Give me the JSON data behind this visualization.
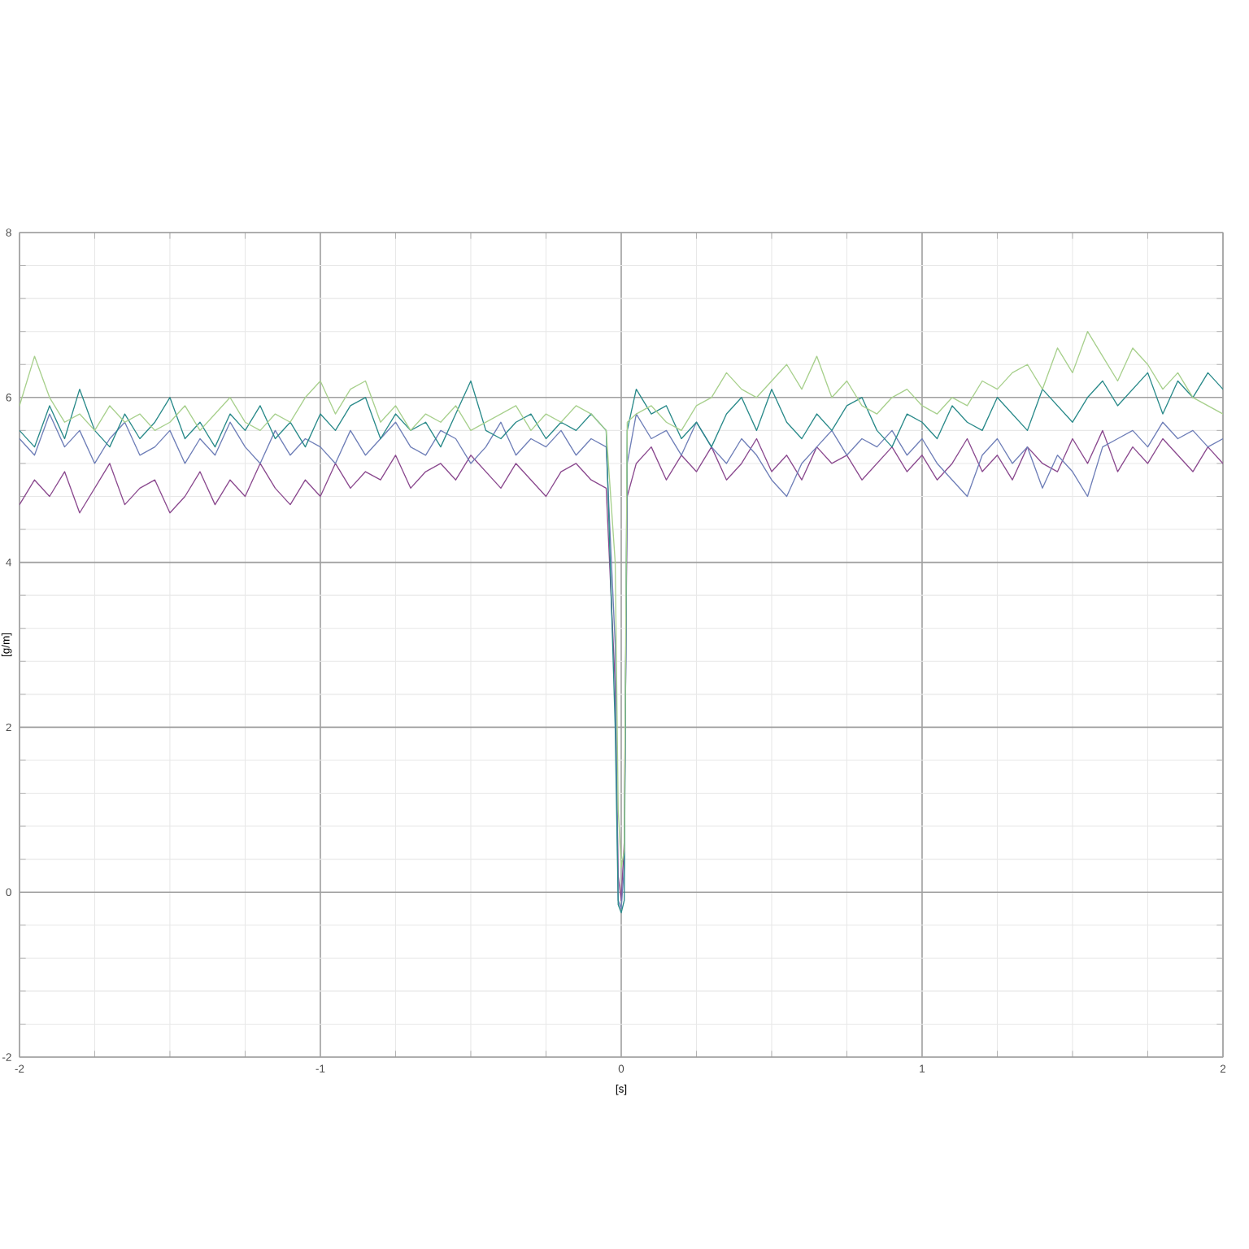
{
  "chart_data": {
    "type": "line",
    "xlabel": "[s]",
    "ylabel": "[g/m]",
    "xlim": [
      -2,
      2
    ],
    "ylim": [
      -2,
      8
    ],
    "xticks": [
      -2,
      -1,
      0,
      1,
      2
    ],
    "yticks": [
      -2,
      0,
      2,
      4,
      6,
      8
    ],
    "grid": true,
    "x": [
      -2,
      -1.95,
      -1.9,
      -1.85,
      -1.8,
      -1.75,
      -1.7,
      -1.65,
      -1.6,
      -1.55,
      -1.5,
      -1.45,
      -1.4,
      -1.35,
      -1.3,
      -1.25,
      -1.2,
      -1.15,
      -1.1,
      -1.05,
      -1,
      -0.95,
      -0.9,
      -0.85,
      -0.8,
      -0.75,
      -0.7,
      -0.65,
      -0.6,
      -0.55,
      -0.5,
      -0.45,
      -0.4,
      -0.35,
      -0.3,
      -0.25,
      -0.2,
      -0.15,
      -0.1,
      -0.05,
      -0.02,
      -0.01,
      0,
      0.01,
      0.02,
      0.05,
      0.1,
      0.15,
      0.2,
      0.25,
      0.3,
      0.35,
      0.4,
      0.45,
      0.5,
      0.55,
      0.6,
      0.65,
      0.7,
      0.75,
      0.8,
      0.85,
      0.9,
      0.95,
      1,
      1.05,
      1.1,
      1.15,
      1.2,
      1.25,
      1.3,
      1.35,
      1.4,
      1.45,
      1.5,
      1.55,
      1.6,
      1.65,
      1.7,
      1.75,
      1.8,
      1.85,
      1.9,
      1.95,
      2
    ],
    "series": [
      {
        "color": "#8b4a8f",
        "values": [
          4.7,
          5.0,
          4.8,
          5.1,
          4.6,
          4.9,
          5.2,
          4.7,
          4.9,
          5.0,
          4.6,
          4.8,
          5.1,
          4.7,
          5.0,
          4.8,
          5.2,
          4.9,
          4.7,
          5.0,
          4.8,
          5.2,
          4.9,
          5.1,
          5.0,
          5.3,
          4.9,
          5.1,
          5.2,
          5.0,
          5.3,
          5.1,
          4.9,
          5.2,
          5.0,
          4.8,
          5.1,
          5.2,
          5.0,
          4.9,
          2.5,
          0.2,
          -0.1,
          0.6,
          4.8,
          5.2,
          5.4,
          5.0,
          5.3,
          5.1,
          5.4,
          5.0,
          5.2,
          5.5,
          5.1,
          5.3,
          5.0,
          5.4,
          5.2,
          5.3,
          5.0,
          5.2,
          5.4,
          5.1,
          5.3,
          5.0,
          5.2,
          5.5,
          5.1,
          5.3,
          5.0,
          5.4,
          5.2,
          5.1,
          5.5,
          5.2,
          5.6,
          5.1,
          5.4,
          5.2,
          5.5,
          5.3,
          5.1,
          5.4,
          5.2
        ]
      },
      {
        "color": "#6f7fb8",
        "values": [
          5.5,
          5.3,
          5.8,
          5.4,
          5.6,
          5.2,
          5.5,
          5.7,
          5.3,
          5.4,
          5.6,
          5.2,
          5.5,
          5.3,
          5.7,
          5.4,
          5.2,
          5.6,
          5.3,
          5.5,
          5.4,
          5.2,
          5.6,
          5.3,
          5.5,
          5.7,
          5.4,
          5.3,
          5.6,
          5.5,
          5.2,
          5.4,
          5.7,
          5.3,
          5.5,
          5.4,
          5.6,
          5.3,
          5.5,
          5.4,
          3.0,
          -0.1,
          -0.2,
          0.3,
          5.2,
          5.8,
          5.5,
          5.6,
          5.3,
          5.7,
          5.4,
          5.2,
          5.5,
          5.3,
          5.0,
          4.8,
          5.2,
          5.4,
          5.6,
          5.3,
          5.5,
          5.4,
          5.6,
          5.3,
          5.5,
          5.2,
          5.0,
          4.8,
          5.3,
          5.5,
          5.2,
          5.4,
          4.9,
          5.3,
          5.1,
          4.8,
          5.4,
          5.5,
          5.6,
          5.4,
          5.7,
          5.5,
          5.6,
          5.4,
          5.5
        ]
      },
      {
        "color": "#2a8a8a",
        "values": [
          5.6,
          5.4,
          5.9,
          5.5,
          6.1,
          5.6,
          5.4,
          5.8,
          5.5,
          5.7,
          6.0,
          5.5,
          5.7,
          5.4,
          5.8,
          5.6,
          5.9,
          5.5,
          5.7,
          5.4,
          5.8,
          5.6,
          5.9,
          6.0,
          5.5,
          5.8,
          5.6,
          5.7,
          5.4,
          5.8,
          6.2,
          5.6,
          5.5,
          5.7,
          5.8,
          5.5,
          5.7,
          5.6,
          5.8,
          5.6,
          2.0,
          -0.15,
          -0.25,
          -0.1,
          5.6,
          6.1,
          5.8,
          5.9,
          5.5,
          5.7,
          5.4,
          5.8,
          6.0,
          5.6,
          6.1,
          5.7,
          5.5,
          5.8,
          5.6,
          5.9,
          6.0,
          5.6,
          5.4,
          5.8,
          5.7,
          5.5,
          5.9,
          5.7,
          5.6,
          6.0,
          5.8,
          5.6,
          6.1,
          5.9,
          5.7,
          6.0,
          6.2,
          5.9,
          6.1,
          6.3,
          5.8,
          6.2,
          6.0,
          6.3,
          6.1
        ]
      },
      {
        "color": "#a8d08d",
        "values": [
          5.9,
          6.5,
          6.0,
          5.7,
          5.8,
          5.6,
          5.9,
          5.7,
          5.8,
          5.6,
          5.7,
          5.9,
          5.6,
          5.8,
          6.0,
          5.7,
          5.6,
          5.8,
          5.7,
          6.0,
          6.2,
          5.8,
          6.1,
          6.2,
          5.7,
          5.9,
          5.6,
          5.8,
          5.7,
          5.9,
          5.6,
          5.7,
          5.8,
          5.9,
          5.6,
          5.8,
          5.7,
          5.9,
          5.8,
          5.6,
          4.0,
          1.0,
          0.3,
          0.5,
          5.7,
          5.8,
          5.9,
          5.7,
          5.6,
          5.9,
          6.0,
          6.3,
          6.1,
          6.0,
          6.2,
          6.4,
          6.1,
          6.5,
          6.0,
          6.2,
          5.9,
          5.8,
          6.0,
          6.1,
          5.9,
          5.8,
          6.0,
          5.9,
          6.2,
          6.1,
          6.3,
          6.4,
          6.1,
          6.6,
          6.3,
          6.8,
          6.5,
          6.2,
          6.6,
          6.4,
          6.1,
          6.3,
          6.0,
          5.9,
          5.8
        ]
      }
    ]
  }
}
